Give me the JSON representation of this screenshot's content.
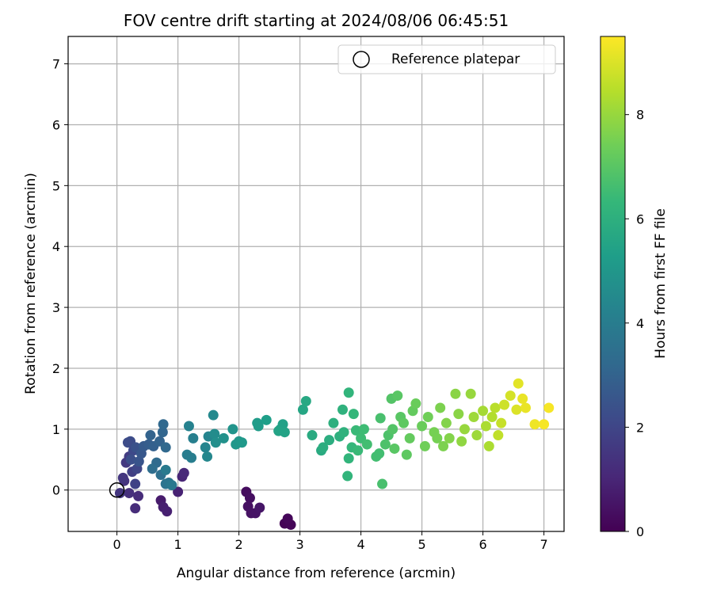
{
  "chart_data": {
    "type": "scatter",
    "title": "FOV centre drift starting at 2024/08/06 06:45:51",
    "xlabel": "Angular distance from reference (arcmin)",
    "ylabel": "Rotation from reference (arcmin)",
    "xlim": [
      -0.8,
      7.33
    ],
    "ylim": [
      -0.68,
      7.45
    ],
    "xticks": [
      0,
      1,
      2,
      3,
      4,
      5,
      6,
      7
    ],
    "yticks": [
      0,
      1,
      2,
      3,
      4,
      5,
      6,
      7
    ],
    "grid": true,
    "legend": {
      "placement": "top-right",
      "label": "Reference platepar"
    },
    "reference_point": {
      "x": 0,
      "y": 0
    },
    "colorbar": {
      "label": "Hours from first FF file",
      "range": [
        0,
        9.5
      ],
      "ticks": [
        0,
        2,
        4,
        6,
        8
      ],
      "colormap": [
        "#440154",
        "#482878",
        "#3e4989",
        "#31688e",
        "#26828e",
        "#1f9e89",
        "#35b779",
        "#6ece58",
        "#b5de2b",
        "#fde725"
      ]
    },
    "points": [
      {
        "x": 2.75,
        "y": -0.55,
        "t": 0.05
      },
      {
        "x": 2.85,
        "y": -0.57,
        "t": 0.1
      },
      {
        "x": 2.8,
        "y": -0.47,
        "t": 0.15
      },
      {
        "x": 2.12,
        "y": -0.03,
        "t": 0.3
      },
      {
        "x": 2.18,
        "y": -0.13,
        "t": 0.35
      },
      {
        "x": 2.15,
        "y": -0.27,
        "t": 0.4
      },
      {
        "x": 2.2,
        "y": -0.38,
        "t": 0.45
      },
      {
        "x": 2.27,
        "y": -0.38,
        "t": 0.5
      },
      {
        "x": 2.34,
        "y": -0.29,
        "t": 0.55
      },
      {
        "x": 0.72,
        "y": -0.17,
        "t": 0.7
      },
      {
        "x": 0.76,
        "y": -0.28,
        "t": 0.8
      },
      {
        "x": 0.82,
        "y": -0.35,
        "t": 0.85
      },
      {
        "x": 1.0,
        "y": -0.03,
        "t": 0.9
      },
      {
        "x": 1.07,
        "y": 0.22,
        "t": 1.0
      },
      {
        "x": 1.1,
        "y": 0.28,
        "t": 1.1
      },
      {
        "x": 0.35,
        "y": -0.1,
        "t": 1.2
      },
      {
        "x": 0.3,
        "y": -0.3,
        "t": 1.2
      },
      {
        "x": 0.2,
        "y": -0.05,
        "t": 1.3
      },
      {
        "x": 0.12,
        "y": 0.15,
        "t": 1.4
      },
      {
        "x": 0.05,
        "y": -0.05,
        "t": 1.5
      },
      {
        "x": 0.1,
        "y": 0.2,
        "t": 1.5
      },
      {
        "x": 0.15,
        "y": 0.45,
        "t": 1.6
      },
      {
        "x": 0.2,
        "y": 0.55,
        "t": 1.7
      },
      {
        "x": 0.25,
        "y": 0.3,
        "t": 1.8
      },
      {
        "x": 0.3,
        "y": 0.1,
        "t": 1.9
      },
      {
        "x": 0.33,
        "y": 0.35,
        "t": 2.0
      },
      {
        "x": 0.27,
        "y": 0.65,
        "t": 2.1
      },
      {
        "x": 0.22,
        "y": 0.8,
        "t": 2.2
      },
      {
        "x": 0.18,
        "y": 0.78,
        "t": 2.2
      },
      {
        "x": 0.23,
        "y": 0.5,
        "t": 2.3
      },
      {
        "x": 0.31,
        "y": 0.7,
        "t": 2.4
      },
      {
        "x": 0.36,
        "y": 0.47,
        "t": 2.5
      },
      {
        "x": 0.4,
        "y": 0.6,
        "t": 2.6
      },
      {
        "x": 0.44,
        "y": 0.72,
        "t": 2.7
      },
      {
        "x": 0.52,
        "y": 0.75,
        "t": 2.8
      },
      {
        "x": 0.6,
        "y": 0.72,
        "t": 2.9
      },
      {
        "x": 0.55,
        "y": 0.9,
        "t": 3.0
      },
      {
        "x": 0.7,
        "y": 0.8,
        "t": 3.0
      },
      {
        "x": 0.75,
        "y": 0.95,
        "t": 3.1
      },
      {
        "x": 0.76,
        "y": 1.08,
        "t": 3.2
      },
      {
        "x": 0.8,
        "y": 0.7,
        "t": 3.2
      },
      {
        "x": 0.65,
        "y": 0.45,
        "t": 3.3
      },
      {
        "x": 0.58,
        "y": 0.35,
        "t": 3.4
      },
      {
        "x": 0.72,
        "y": 0.25,
        "t": 3.5
      },
      {
        "x": 0.8,
        "y": 0.1,
        "t": 3.6
      },
      {
        "x": 0.85,
        "y": 0.12,
        "t": 3.7
      },
      {
        "x": 0.9,
        "y": 0.08,
        "t": 3.8
      },
      {
        "x": 0.8,
        "y": 0.33,
        "t": 3.9
      },
      {
        "x": 1.15,
        "y": 0.58,
        "t": 4.0
      },
      {
        "x": 1.22,
        "y": 0.53,
        "t": 4.0
      },
      {
        "x": 1.25,
        "y": 0.85,
        "t": 4.1
      },
      {
        "x": 1.18,
        "y": 1.05,
        "t": 4.2
      },
      {
        "x": 1.45,
        "y": 0.7,
        "t": 4.3
      },
      {
        "x": 1.5,
        "y": 0.88,
        "t": 4.3
      },
      {
        "x": 1.48,
        "y": 0.55,
        "t": 4.4
      },
      {
        "x": 1.58,
        "y": 1.23,
        "t": 4.5
      },
      {
        "x": 1.6,
        "y": 0.92,
        "t": 4.6
      },
      {
        "x": 1.62,
        "y": 0.78,
        "t": 4.7
      },
      {
        "x": 1.75,
        "y": 0.85,
        "t": 4.8
      },
      {
        "x": 1.9,
        "y": 1.0,
        "t": 4.9
      },
      {
        "x": 1.95,
        "y": 0.75,
        "t": 5.0
      },
      {
        "x": 2.0,
        "y": 0.8,
        "t": 5.0
      },
      {
        "x": 2.05,
        "y": 0.78,
        "t": 5.1
      },
      {
        "x": 2.3,
        "y": 1.1,
        "t": 5.2
      },
      {
        "x": 2.32,
        "y": 1.05,
        "t": 5.2
      },
      {
        "x": 2.45,
        "y": 1.15,
        "t": 5.3
      },
      {
        "x": 2.68,
        "y": 1.0,
        "t": 5.4
      },
      {
        "x": 2.72,
        "y": 1.08,
        "t": 5.4
      },
      {
        "x": 2.75,
        "y": 0.95,
        "t": 5.5
      },
      {
        "x": 2.65,
        "y": 0.97,
        "t": 5.5
      },
      {
        "x": 3.05,
        "y": 1.32,
        "t": 5.6
      },
      {
        "x": 3.1,
        "y": 1.46,
        "t": 5.7
      },
      {
        "x": 3.2,
        "y": 0.9,
        "t": 5.8
      },
      {
        "x": 3.35,
        "y": 0.65,
        "t": 5.8
      },
      {
        "x": 3.38,
        "y": 0.7,
        "t": 5.9
      },
      {
        "x": 3.48,
        "y": 0.82,
        "t": 5.9
      },
      {
        "x": 3.55,
        "y": 1.1,
        "t": 6.0
      },
      {
        "x": 3.65,
        "y": 0.88,
        "t": 6.0
      },
      {
        "x": 3.7,
        "y": 1.32,
        "t": 6.1
      },
      {
        "x": 3.72,
        "y": 0.95,
        "t": 6.1
      },
      {
        "x": 3.78,
        "y": 0.23,
        "t": 6.2
      },
      {
        "x": 3.8,
        "y": 0.52,
        "t": 6.2
      },
      {
        "x": 3.8,
        "y": 1.6,
        "t": 6.2
      },
      {
        "x": 3.85,
        "y": 0.7,
        "t": 6.3
      },
      {
        "x": 3.88,
        "y": 1.25,
        "t": 6.3
      },
      {
        "x": 3.92,
        "y": 0.98,
        "t": 6.4
      },
      {
        "x": 3.95,
        "y": 0.65,
        "t": 6.4
      },
      {
        "x": 4.0,
        "y": 0.85,
        "t": 6.5
      },
      {
        "x": 4.05,
        "y": 1.0,
        "t": 6.5
      },
      {
        "x": 4.1,
        "y": 0.75,
        "t": 6.6
      },
      {
        "x": 4.25,
        "y": 0.55,
        "t": 6.6
      },
      {
        "x": 4.3,
        "y": 0.6,
        "t": 6.6
      },
      {
        "x": 4.32,
        "y": 1.18,
        "t": 6.7
      },
      {
        "x": 4.35,
        "y": 0.1,
        "t": 6.7
      },
      {
        "x": 4.4,
        "y": 0.75,
        "t": 6.8
      },
      {
        "x": 4.45,
        "y": 0.9,
        "t": 6.8
      },
      {
        "x": 4.5,
        "y": 1.5,
        "t": 6.9
      },
      {
        "x": 4.52,
        "y": 1.0,
        "t": 6.9
      },
      {
        "x": 4.55,
        "y": 0.68,
        "t": 7.0
      },
      {
        "x": 4.6,
        "y": 1.55,
        "t": 7.0
      },
      {
        "x": 4.65,
        "y": 1.2,
        "t": 7.0
      },
      {
        "x": 4.7,
        "y": 1.1,
        "t": 7.1
      },
      {
        "x": 4.75,
        "y": 0.58,
        "t": 7.1
      },
      {
        "x": 4.8,
        "y": 0.85,
        "t": 7.2
      },
      {
        "x": 4.85,
        "y": 1.3,
        "t": 7.2
      },
      {
        "x": 4.9,
        "y": 1.42,
        "t": 7.3
      },
      {
        "x": 5.0,
        "y": 1.05,
        "t": 7.3
      },
      {
        "x": 5.05,
        "y": 0.72,
        "t": 7.4
      },
      {
        "x": 5.1,
        "y": 1.2,
        "t": 7.4
      },
      {
        "x": 5.2,
        "y": 0.95,
        "t": 7.5
      },
      {
        "x": 5.25,
        "y": 0.85,
        "t": 7.5
      },
      {
        "x": 5.3,
        "y": 1.35,
        "t": 7.6
      },
      {
        "x": 5.35,
        "y": 0.72,
        "t": 7.6
      },
      {
        "x": 5.4,
        "y": 1.1,
        "t": 7.7
      },
      {
        "x": 5.45,
        "y": 0.85,
        "t": 7.7
      },
      {
        "x": 5.55,
        "y": 1.58,
        "t": 7.8
      },
      {
        "x": 5.6,
        "y": 1.25,
        "t": 7.8
      },
      {
        "x": 5.65,
        "y": 0.8,
        "t": 7.9
      },
      {
        "x": 5.7,
        "y": 1.0,
        "t": 8.0
      },
      {
        "x": 5.8,
        "y": 1.58,
        "t": 8.0
      },
      {
        "x": 5.85,
        "y": 1.2,
        "t": 8.1
      },
      {
        "x": 5.9,
        "y": 0.9,
        "t": 8.1
      },
      {
        "x": 6.0,
        "y": 1.3,
        "t": 8.2
      },
      {
        "x": 6.05,
        "y": 1.05,
        "t": 8.3
      },
      {
        "x": 6.1,
        "y": 0.72,
        "t": 8.3
      },
      {
        "x": 6.15,
        "y": 1.2,
        "t": 8.4
      },
      {
        "x": 6.2,
        "y": 1.35,
        "t": 8.5
      },
      {
        "x": 6.25,
        "y": 0.9,
        "t": 8.6
      },
      {
        "x": 6.3,
        "y": 1.1,
        "t": 8.7
      },
      {
        "x": 6.35,
        "y": 1.4,
        "t": 8.8
      },
      {
        "x": 6.45,
        "y": 1.55,
        "t": 8.9
      },
      {
        "x": 6.55,
        "y": 1.32,
        "t": 9.0
      },
      {
        "x": 6.58,
        "y": 1.75,
        "t": 9.1
      },
      {
        "x": 6.65,
        "y": 1.5,
        "t": 9.2
      },
      {
        "x": 6.7,
        "y": 1.35,
        "t": 9.2
      },
      {
        "x": 6.85,
        "y": 1.08,
        "t": 9.3
      },
      {
        "x": 7.0,
        "y": 1.08,
        "t": 9.4
      },
      {
        "x": 7.08,
        "y": 1.35,
        "t": 9.4
      }
    ]
  }
}
